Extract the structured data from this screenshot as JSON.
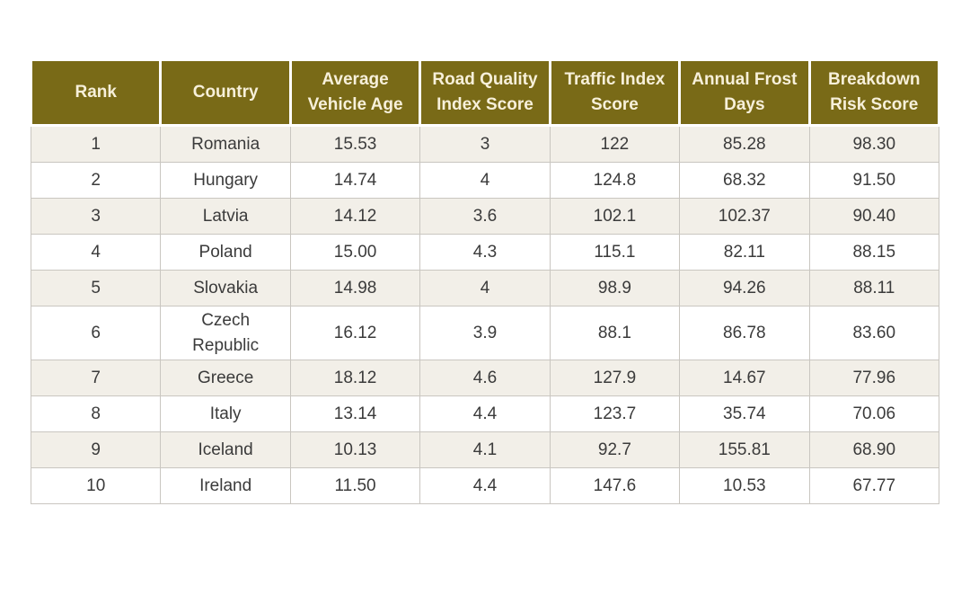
{
  "colors": {
    "header_bg": "#796a17",
    "header_text": "#f7f0da",
    "stripe_row_bg": "#f2efe8",
    "plain_row_bg": "#ffffff",
    "body_text": "#3b3b3b",
    "cell_border": "#c9c6c0"
  },
  "table": {
    "columns": [
      {
        "key": "rank",
        "label": "Rank"
      },
      {
        "key": "country",
        "label": "Country"
      },
      {
        "key": "avg_vehicle_age",
        "label": "Average\nVehicle Age"
      },
      {
        "key": "road_quality_index_score",
        "label": "Road Quality\nIndex Score"
      },
      {
        "key": "traffic_index_score",
        "label": "Traffic Index\nScore"
      },
      {
        "key": "annual_frost_days",
        "label": "Annual Frost\nDays"
      },
      {
        "key": "breakdown_risk_score",
        "label": "Breakdown\nRisk Score"
      }
    ],
    "rows": [
      [
        "1",
        "Romania",
        "15.53",
        "3",
        "122",
        "85.28",
        "98.30"
      ],
      [
        "2",
        "Hungary",
        "14.74",
        "4",
        "124.8",
        "68.32",
        "91.50"
      ],
      [
        "3",
        "Latvia",
        "14.12",
        "3.6",
        "102.1",
        "102.37",
        "90.40"
      ],
      [
        "4",
        "Poland",
        "15.00",
        "4.3",
        "115.1",
        "82.11",
        "88.15"
      ],
      [
        "5",
        "Slovakia",
        "14.98",
        "4",
        "98.9",
        "94.26",
        "88.11"
      ],
      [
        "6",
        "Czech\nRepublic",
        "16.12",
        "3.9",
        "88.1",
        "86.78",
        "83.60"
      ],
      [
        "7",
        "Greece",
        "18.12",
        "4.6",
        "127.9",
        "14.67",
        "77.96"
      ],
      [
        "8",
        "Italy",
        "13.14",
        "4.4",
        "123.7",
        "35.74",
        "70.06"
      ],
      [
        "9",
        "Iceland",
        "10.13",
        "4.1",
        "92.7",
        "155.81",
        "68.90"
      ],
      [
        "10",
        "Ireland",
        "11.50",
        "4.4",
        "147.6",
        "10.53",
        "67.77"
      ]
    ]
  }
}
